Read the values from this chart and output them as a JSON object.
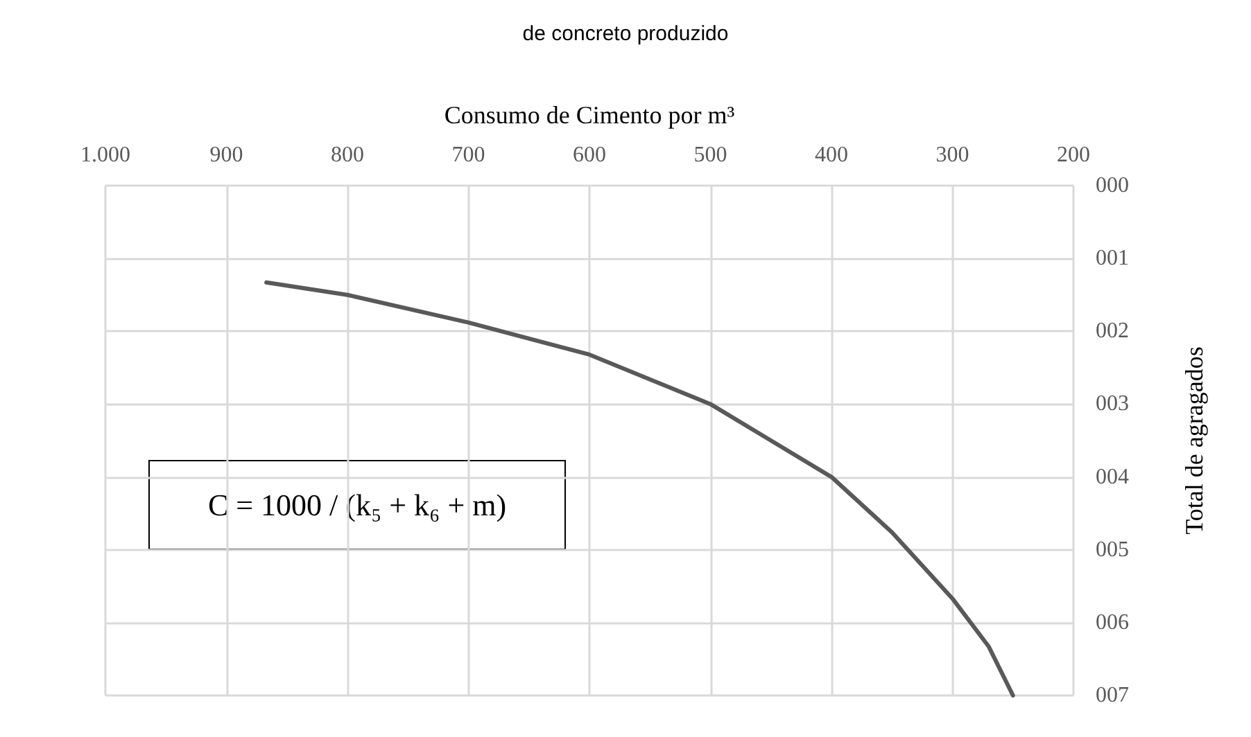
{
  "chart_data": {
    "type": "line",
    "title": "de concreto produzido",
    "xlabel": "Consumo de Cimento por m³",
    "ylabel": "Total de agragados",
    "x": [
      867,
      800,
      700,
      600,
      550,
      500,
      450,
      400,
      350,
      300,
      270,
      250
    ],
    "series": [
      {
        "color": "#595959",
        "values": [
          1.33,
          1.5,
          1.88,
          2.32,
          2.66,
          3.0,
          3.5,
          4.0,
          4.76,
          5.67,
          6.33,
          7.0
        ]
      }
    ],
    "xlim": [
      1000,
      200
    ],
    "xticks": [
      {
        "value": 1000,
        "label": "1.000"
      },
      900,
      800,
      700,
      600,
      500,
      400,
      300,
      200
    ],
    "ylim": [
      7,
      0
    ],
    "yticks": [
      {
        "value": 0,
        "label": "000"
      },
      {
        "value": 1,
        "label": "001"
      },
      {
        "value": 2,
        "label": "002"
      },
      {
        "value": 3,
        "label": "003"
      },
      {
        "value": 4,
        "label": "004"
      },
      {
        "value": 5,
        "label": "005"
      },
      {
        "value": 6,
        "label": "006"
      },
      {
        "value": 7,
        "label": "007"
      }
    ],
    "annotations": [
      "C = 1000 / (k₅ + k₆ + m)"
    ],
    "grid": true,
    "marker": "none",
    "line_style": "solid"
  }
}
